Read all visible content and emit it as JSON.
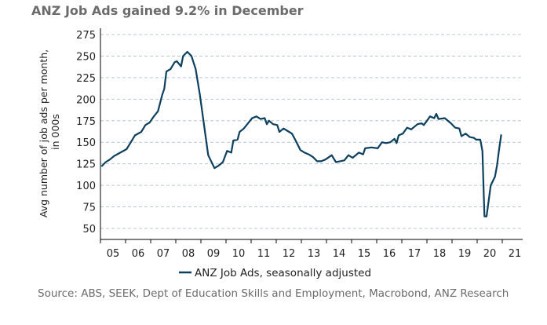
{
  "title": "ANZ Job Ads gained 9.2% in December",
  "source": "Source: ABS, SEEK, Dept of Education Skills and Employment, Macrobond, ANZ Research",
  "chart_data": {
    "type": "line",
    "title": "ANZ Job Ads gained 9.2% in December",
    "ylabel_lines": [
      "Avg number of job ads per month,",
      "in 000s"
    ],
    "ylim": [
      50,
      275
    ],
    "yticks": [
      50,
      75,
      100,
      125,
      150,
      175,
      200,
      225,
      250,
      275
    ],
    "xticks": [
      "05",
      "06",
      "07",
      "08",
      "09",
      "10",
      "11",
      "12",
      "13",
      "14",
      "15",
      "16",
      "17",
      "18",
      "19",
      "20",
      "21"
    ],
    "xlim": [
      "2005-01",
      "2021-12"
    ],
    "grid": "horizontal dashed",
    "legend": "bottom-center",
    "line_color": "#0d3f5f",
    "series": [
      {
        "name": "ANZ Job Ads, seasonally adjusted",
        "points": [
          [
            "2005-01",
            122
          ],
          [
            "2005-03",
            127
          ],
          [
            "2005-05",
            130
          ],
          [
            "2005-07",
            134
          ],
          [
            "2005-10",
            138
          ],
          [
            "2006-01",
            142
          ],
          [
            "2006-03",
            150
          ],
          [
            "2006-05",
            158
          ],
          [
            "2006-08",
            162
          ],
          [
            "2006-10",
            170
          ],
          [
            "2006-12",
            173
          ],
          [
            "2007-02",
            180
          ],
          [
            "2007-04",
            186
          ],
          [
            "2007-06",
            205
          ],
          [
            "2007-07",
            212
          ],
          [
            "2007-08",
            232
          ],
          [
            "2007-10",
            235
          ],
          [
            "2007-12",
            243
          ],
          [
            "2008-01",
            244
          ],
          [
            "2008-03",
            238
          ],
          [
            "2008-04",
            250
          ],
          [
            "2008-06",
            255
          ],
          [
            "2008-08",
            250
          ],
          [
            "2008-10",
            235
          ],
          [
            "2008-12",
            205
          ],
          [
            "2009-02",
            170
          ],
          [
            "2009-04",
            135
          ],
          [
            "2009-05",
            130
          ],
          [
            "2009-07",
            120
          ],
          [
            "2009-09",
            123
          ],
          [
            "2009-11",
            127
          ],
          [
            "2010-01",
            140
          ],
          [
            "2010-03",
            138
          ],
          [
            "2010-04",
            152
          ],
          [
            "2010-06",
            153
          ],
          [
            "2010-07",
            162
          ],
          [
            "2010-09",
            166
          ],
          [
            "2010-11",
            172
          ],
          [
            "2011-01",
            178
          ],
          [
            "2011-03",
            180
          ],
          [
            "2011-05",
            177
          ],
          [
            "2011-07",
            178
          ],
          [
            "2011-08",
            171
          ],
          [
            "2011-09",
            175
          ],
          [
            "2011-11",
            171
          ],
          [
            "2012-01",
            170
          ],
          [
            "2012-02",
            162
          ],
          [
            "2012-04",
            166
          ],
          [
            "2012-06",
            163
          ],
          [
            "2012-08",
            160
          ],
          [
            "2012-10",
            151
          ],
          [
            "2012-12",
            141
          ],
          [
            "2013-02",
            138
          ],
          [
            "2013-04",
            136
          ],
          [
            "2013-06",
            133
          ],
          [
            "2013-08",
            128
          ],
          [
            "2013-10",
            128
          ],
          [
            "2013-12",
            130
          ],
          [
            "2014-03",
            135
          ],
          [
            "2014-05",
            127
          ],
          [
            "2014-07",
            128
          ],
          [
            "2014-09",
            129
          ],
          [
            "2014-11",
            135
          ],
          [
            "2015-01",
            132
          ],
          [
            "2015-04",
            138
          ],
          [
            "2015-06",
            136
          ],
          [
            "2015-07",
            143
          ],
          [
            "2015-10",
            144
          ],
          [
            "2016-01",
            143
          ],
          [
            "2016-03",
            150
          ],
          [
            "2016-05",
            149
          ],
          [
            "2016-07",
            150
          ],
          [
            "2016-09",
            154
          ],
          [
            "2016-10",
            149
          ],
          [
            "2016-11",
            158
          ],
          [
            "2017-01",
            160
          ],
          [
            "2017-03",
            167
          ],
          [
            "2017-05",
            165
          ],
          [
            "2017-08",
            171
          ],
          [
            "2017-10",
            172
          ],
          [
            "2017-11",
            170
          ],
          [
            "2018-02",
            180
          ],
          [
            "2018-04",
            178
          ],
          [
            "2018-05",
            183
          ],
          [
            "2018-06",
            177
          ],
          [
            "2018-09",
            178
          ],
          [
            "2018-12",
            172
          ],
          [
            "2019-02",
            167
          ],
          [
            "2019-04",
            166
          ],
          [
            "2019-05",
            157
          ],
          [
            "2019-07",
            160
          ],
          [
            "2019-09",
            156
          ],
          [
            "2019-11",
            155
          ],
          [
            "2019-12",
            153
          ],
          [
            "2020-02",
            153
          ],
          [
            "2020-03",
            140
          ],
          [
            "2020-04",
            64
          ],
          [
            "2020-05",
            64
          ],
          [
            "2020-07",
            100
          ],
          [
            "2020-09",
            110
          ],
          [
            "2020-10",
            123
          ],
          [
            "2020-11",
            142
          ],
          [
            "2020-12",
            159
          ]
        ]
      }
    ]
  }
}
